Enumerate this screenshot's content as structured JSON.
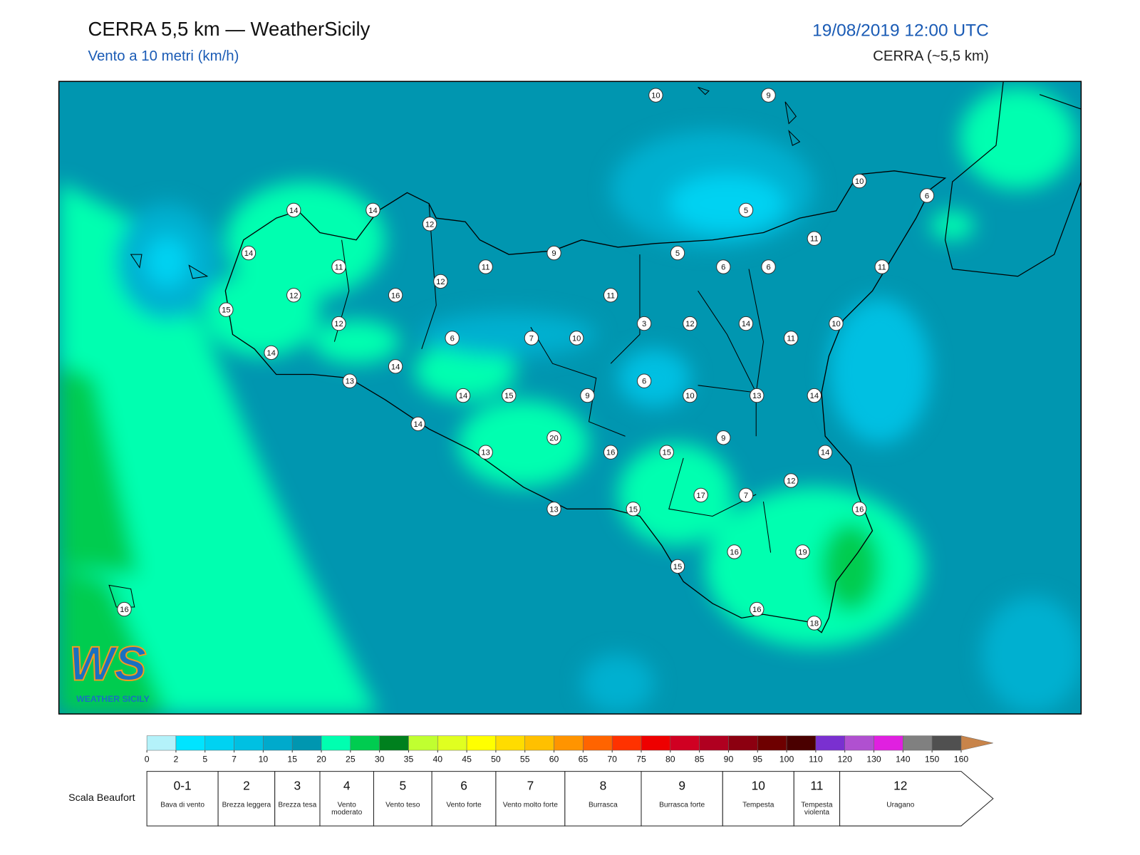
{
  "header": {
    "title": "CERRA 5,5 km — WeatherSicily",
    "subtitle": "Vento a 10 metri (km/h)",
    "datetime": "19/08/2019 12:00 UTC",
    "model": "CERRA (~5,5 km)"
  },
  "stations": [
    10,
    9,
    10,
    6,
    14,
    14,
    5,
    12,
    11,
    14,
    9,
    5,
    11,
    11,
    6,
    6,
    11,
    12,
    12,
    16,
    11,
    15,
    3,
    12,
    14,
    10,
    12,
    6,
    7,
    10,
    11,
    14,
    14,
    13,
    6,
    14,
    15,
    9,
    10,
    13,
    14,
    14,
    20,
    9,
    13,
    16,
    15,
    14,
    12,
    17,
    7,
    13,
    15,
    16,
    16,
    19,
    15,
    16,
    18,
    16
  ],
  "colorbar": {
    "ticks": [
      0,
      2,
      5,
      7,
      10,
      15,
      20,
      25,
      30,
      35,
      40,
      45,
      50,
      55,
      60,
      65,
      70,
      75,
      80,
      85,
      90,
      95,
      100,
      110,
      120,
      130,
      140,
      150,
      160
    ],
    "colors": [
      "#b4f2fa",
      "#00e4ff",
      "#00d2f2",
      "#00c0e2",
      "#00aacc",
      "#0096b0",
      "#00ffb0",
      "#00cc50",
      "#00801e",
      "#c0ff30",
      "#e0ff20",
      "#ffff00",
      "#ffdc00",
      "#ffc000",
      "#ff9400",
      "#ff6400",
      "#ff3200",
      "#ee0000",
      "#d00022",
      "#b00020",
      "#8c0010",
      "#6e0000",
      "#4a0000",
      "#7a30d0",
      "#b050d0",
      "#e020e0",
      "#808080",
      "#505050",
      "#000000",
      "#804830",
      "#c8844a"
    ]
  },
  "beaufort": {
    "title": "Scala Beaufort",
    "levels": [
      {
        "force": "0-1",
        "label": "Bava di vento"
      },
      {
        "force": "2",
        "label": "Brezza leggera"
      },
      {
        "force": "3",
        "label": "Brezza tesa"
      },
      {
        "force": "4",
        "label": "Vento moderato"
      },
      {
        "force": "5",
        "label": "Vento teso"
      },
      {
        "force": "6",
        "label": "Vento forte"
      },
      {
        "force": "7",
        "label": "Vento molto forte"
      },
      {
        "force": "8",
        "label": "Burrasca"
      },
      {
        "force": "9",
        "label": "Burrasca forte"
      },
      {
        "force": "10",
        "label": "Tempesta"
      },
      {
        "force": "11",
        "label": "Tempesta violenta"
      },
      {
        "force": "12",
        "label": "Uragano"
      }
    ]
  },
  "logo": {
    "mark": "WS",
    "name": "WEATHER SICILY"
  }
}
